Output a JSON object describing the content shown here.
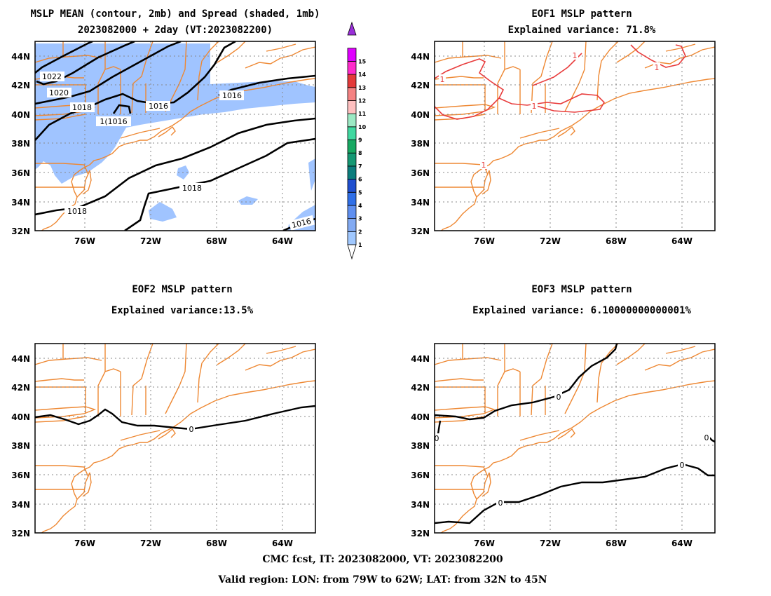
{
  "panels": [
    {
      "id": "mslp-mean",
      "title_lines": [
        "MSLP MEAN (contour, 2mb) and Spread (shaded, 1mb)",
        "2023082000 + 2day (VT:2023082200)"
      ],
      "lon_ticks": [
        "76W",
        "72W",
        "68W",
        "64W"
      ],
      "lat_ticks": [
        "44N",
        "42N",
        "40N",
        "38N",
        "36N",
        "34N",
        "32N"
      ],
      "contour_labels": [
        "1022",
        "1020",
        "1018",
        "1016",
        "1(1016",
        "1016",
        "1018",
        "1018",
        "1016"
      ]
    },
    {
      "id": "eof1",
      "title_lines": [
        "EOF1 MSLP pattern",
        "Explained variance: 71.8%"
      ],
      "lon_ticks": [
        "76W",
        "72W",
        "68W",
        "64W"
      ],
      "lat_ticks": [
        "44N",
        "42N",
        "40N",
        "38N",
        "36N",
        "34N",
        "32N"
      ],
      "contour_labels": [
        "1",
        "1",
        "1",
        "1",
        "1"
      ]
    },
    {
      "id": "eof2",
      "title_lines": [
        "EOF2 MSLP pattern",
        "Explained variance:13.5%"
      ],
      "lon_ticks": [
        "76W",
        "72W",
        "68W",
        "64W"
      ],
      "lat_ticks": [
        "44N",
        "42N",
        "40N",
        "38N",
        "36N",
        "34N",
        "32N"
      ],
      "contour_labels": [
        "0"
      ]
    },
    {
      "id": "eof3",
      "title_lines": [
        "EOF3 MSLP pattern",
        "Explained variance: 6.10000000000001%"
      ],
      "lon_ticks": [
        "76W",
        "72W",
        "68W",
        "64W"
      ],
      "lat_ticks": [
        "44N",
        "42N",
        "40N",
        "38N",
        "36N",
        "34N",
        "32N"
      ],
      "contour_labels": [
        "0",
        "0",
        "0",
        "0",
        "0"
      ]
    }
  ],
  "colorbar": {
    "labels": [
      "1",
      "2",
      "3",
      "4",
      "5",
      "6",
      "7",
      "8",
      "9",
      "10",
      "11",
      "12",
      "13",
      "14",
      "15"
    ],
    "colors": [
      "#a0c8ff",
      "#82aaf2",
      "#5f8ff0",
      "#2f6fe8",
      "#1f4fcf",
      "#0b7d7d",
      "#149873",
      "#17a862",
      "#40d8a0",
      "#9ce9c4",
      "#ffc0c0",
      "#f48282",
      "#e33a3a",
      "#ff2ccb",
      "#e000ff",
      "#9a2fd9"
    ]
  },
  "colors": {
    "coast": "#ee8833",
    "contour": "#000000",
    "spread": "#a0c4ff",
    "eof1": "#e83c3c",
    "grid": "#888888"
  },
  "footer": [
    "CMC fcst, IT: 2023082000, VT: 2023082200",
    "Valid region: LON: from 79W to 62W; LAT: from 32N to 45N"
  ]
}
